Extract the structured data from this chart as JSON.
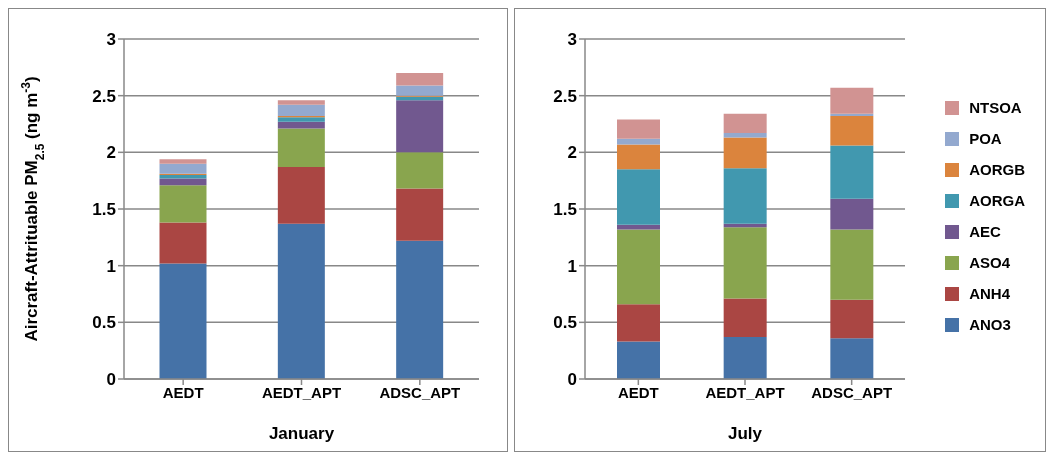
{
  "chart_data": [
    {
      "type": "bar",
      "stacked": true,
      "xlabel": "January",
      "ylabel": "Aircraft-Attrituable PM$_{2.5}$ (ng m$^{-3}$)",
      "categories": [
        "AEDT",
        "AEDT_APT",
        "ADSC_APT"
      ],
      "ylim": [
        0,
        3
      ],
      "yticks": [
        0,
        0.5,
        1,
        1.5,
        2,
        2.5,
        3
      ],
      "grid": "y",
      "legend": false,
      "series": [
        {
          "color": "#4572a7",
          "values": [
            1.02,
            1.37,
            1.22
          ]
        },
        {
          "color": "#aa4643",
          "values": [
            0.36,
            0.5,
            0.46
          ]
        },
        {
          "color": "#89a54e",
          "values": [
            0.33,
            0.34,
            0.32
          ]
        },
        {
          "color": "#71588f",
          "values": [
            0.06,
            0.06,
            0.46
          ]
        },
        {
          "color": "#4198af",
          "values": [
            0.03,
            0.04,
            0.03
          ]
        },
        {
          "color": "#db843d",
          "values": [
            0.01,
            0.01,
            0.01
          ]
        },
        {
          "color": "#93a9cf",
          "values": [
            0.09,
            0.1,
            0.09
          ]
        },
        {
          "color": "#d19392",
          "values": [
            0.04,
            0.04,
            0.11
          ]
        }
      ]
    },
    {
      "type": "bar",
      "stacked": true,
      "xlabel": "July",
      "categories": [
        "AEDT",
        "AEDT_APT",
        "ADSC_APT"
      ],
      "ylim": [
        0,
        3
      ],
      "yticks": [
        0,
        0.5,
        1,
        1.5,
        2,
        2.5,
        3
      ],
      "grid": "y",
      "legend": "right",
      "series": [
        {
          "name": "ANO3",
          "color": "#4572a7",
          "values": [
            0.33,
            0.37,
            0.36
          ]
        },
        {
          "name": "ANH4",
          "color": "#aa4643",
          "values": [
            0.33,
            0.34,
            0.34
          ]
        },
        {
          "name": "ASO4",
          "color": "#89a54e",
          "values": [
            0.66,
            0.63,
            0.62
          ]
        },
        {
          "name": "AEC",
          "color": "#71588f",
          "values": [
            0.04,
            0.03,
            0.27
          ]
        },
        {
          "name": "AORGA",
          "color": "#4198af",
          "values": [
            0.49,
            0.49,
            0.47
          ]
        },
        {
          "name": "AORGB",
          "color": "#db843d",
          "values": [
            0.22,
            0.27,
            0.26
          ]
        },
        {
          "name": "POA",
          "color": "#93a9cf",
          "values": [
            0.05,
            0.04,
            0.02
          ]
        },
        {
          "name": "NTSOA",
          "color": "#d19392",
          "values": [
            0.17,
            0.17,
            0.23
          ]
        }
      ]
    }
  ]
}
